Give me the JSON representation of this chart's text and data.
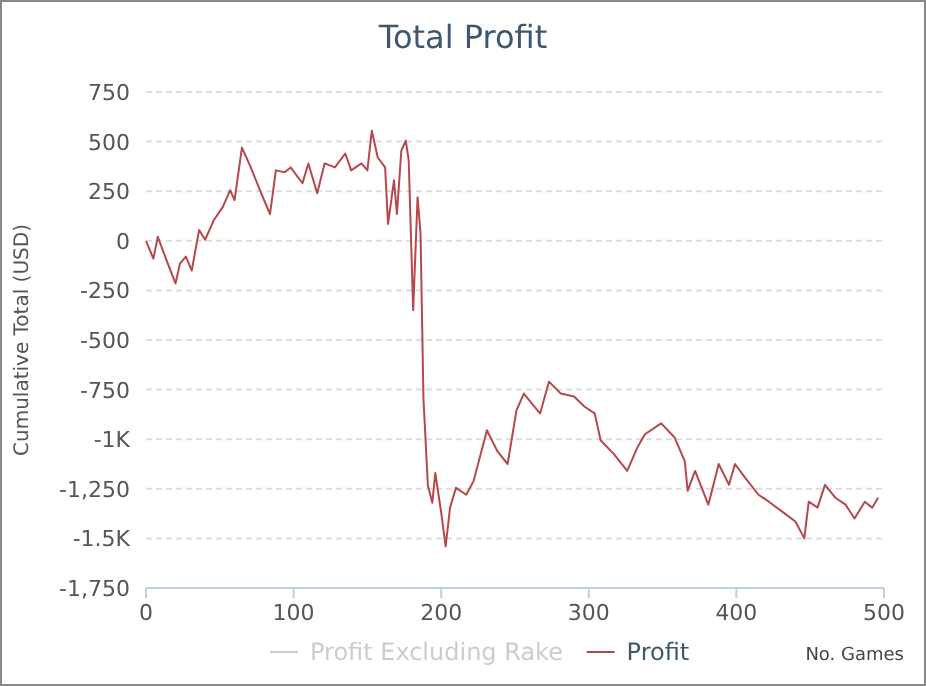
{
  "chart_data": {
    "type": "line",
    "title": "Total Profit",
    "xlabel": "No. Games",
    "ylabel": "Cumulative Total (USD)",
    "xlim": [
      0,
      500
    ],
    "xticks": [
      0,
      100,
      200,
      300,
      400,
      500
    ],
    "ylim": [
      -1750,
      750
    ],
    "yticks": [
      750,
      500,
      250,
      0,
      -250,
      -500,
      -750,
      {
        "value": -1000,
        "label": "-1K"
      },
      {
        "value": -1250,
        "label": "-1,250"
      },
      {
        "value": -1500,
        "label": "-1.5K"
      },
      {
        "value": -1750,
        "label": "-1,750"
      }
    ],
    "grid": "y",
    "legend": "bottom",
    "marker": "none",
    "series": [
      {
        "name": "Profit Excluding Rake",
        "color": "#cccccc"
      },
      {
        "name": "Profit",
        "color": "#b5484d",
        "x": [
          0,
          5,
          8,
          14,
          20,
          23,
          27,
          31,
          36,
          40,
          46,
          52,
          57,
          60,
          65,
          71,
          78,
          84,
          88,
          94,
          98,
          106,
          110,
          116,
          121,
          128,
          135,
          139,
          146,
          150,
          153,
          157,
          162,
          164,
          168,
          170,
          173,
          176,
          178,
          181,
          184,
          186,
          188,
          191,
          194,
          196,
          200,
          203,
          206,
          210,
          217,
          222,
          231,
          238,
          245,
          251,
          256,
          263,
          267,
          273,
          281,
          290,
          297,
          304,
          308,
          317,
          326,
          333,
          338,
          349,
          358,
          365,
          367,
          372,
          381,
          388,
          395,
          399,
          406,
          415,
          422,
          431,
          440,
          446,
          449,
          455,
          460,
          467,
          474,
          480,
          487,
          492,
          496
        ],
        "values": [
          0,
          -90,
          20,
          -100,
          -215,
          -115,
          -80,
          -150,
          55,
          5,
          105,
          170,
          255,
          205,
          470,
          370,
          240,
          135,
          355,
          345,
          370,
          290,
          390,
          240,
          390,
          370,
          440,
          355,
          390,
          355,
          555,
          420,
          370,
          85,
          305,
          135,
          455,
          505,
          405,
          -350,
          220,
          35,
          -800,
          -1235,
          -1320,
          -1170,
          -1370,
          -1540,
          -1345,
          -1245,
          -1280,
          -1210,
          -955,
          -1060,
          -1125,
          -855,
          -770,
          -835,
          -870,
          -710,
          -770,
          -785,
          -835,
          -870,
          -1005,
          -1075,
          -1160,
          -1040,
          -975,
          -920,
          -990,
          -1110,
          -1260,
          -1160,
          -1330,
          -1125,
          -1230,
          -1125,
          -1195,
          -1280,
          -1315,
          -1365,
          -1415,
          -1500,
          -1315,
          -1345,
          -1230,
          -1295,
          -1330,
          -1400,
          -1315,
          -1345,
          -1295
        ]
      }
    ]
  }
}
